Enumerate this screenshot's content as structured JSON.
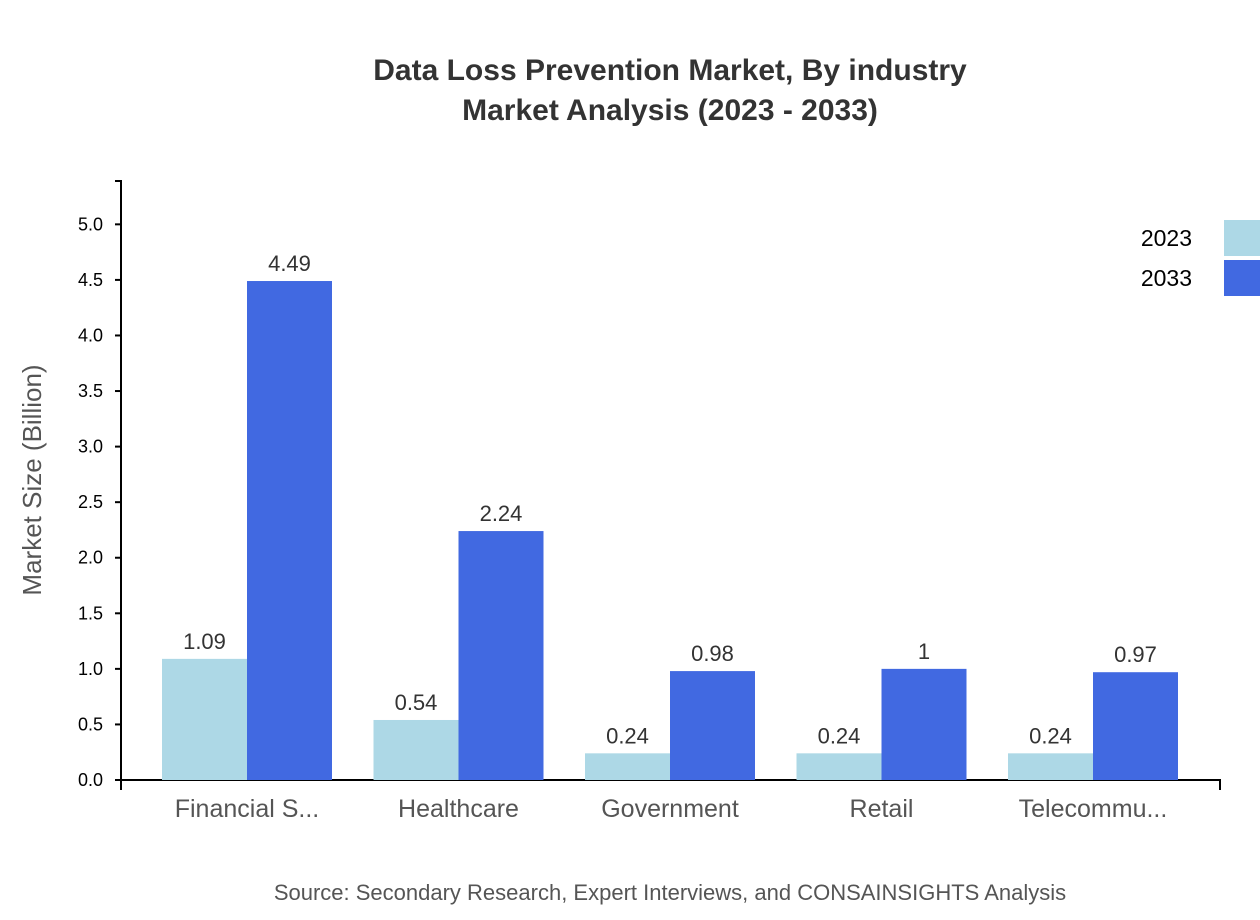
{
  "chart_data": {
    "type": "bar",
    "title_line1": "Data Loss Prevention Market, By industry",
    "title_line2": "Market Analysis (2023 - 2033)",
    "xlabel": "",
    "ylabel": "Market Size (Billion)",
    "ylim": [
      0,
      5.39
    ],
    "yticks": [
      "0.0",
      "0.5",
      "1.0",
      "1.5",
      "2.0",
      "2.5",
      "3.0",
      "3.5",
      "4.0",
      "4.5",
      "5.0"
    ],
    "categories": [
      "Financial S...",
      "Healthcare",
      "Government",
      "Retail",
      "Telecommu..."
    ],
    "series": [
      {
        "name": "2023",
        "color": "#ADD8E6",
        "values": [
          1.09,
          0.54,
          0.24,
          0.24,
          0.24
        ],
        "labels": [
          "1.09",
          "0.54",
          "0.24",
          "0.24",
          "0.24"
        ]
      },
      {
        "name": "2033",
        "color": "#4169E1",
        "values": [
          4.49,
          2.24,
          0.98,
          1.0,
          0.97
        ],
        "labels": [
          "4.49",
          "2.24",
          "0.98",
          "1",
          "0.97"
        ]
      }
    ],
    "grid": false,
    "legend_position": "top-right",
    "source": "Source: Secondary Research, Expert Interviews, and CONSAINSIGHTS Analysis"
  }
}
